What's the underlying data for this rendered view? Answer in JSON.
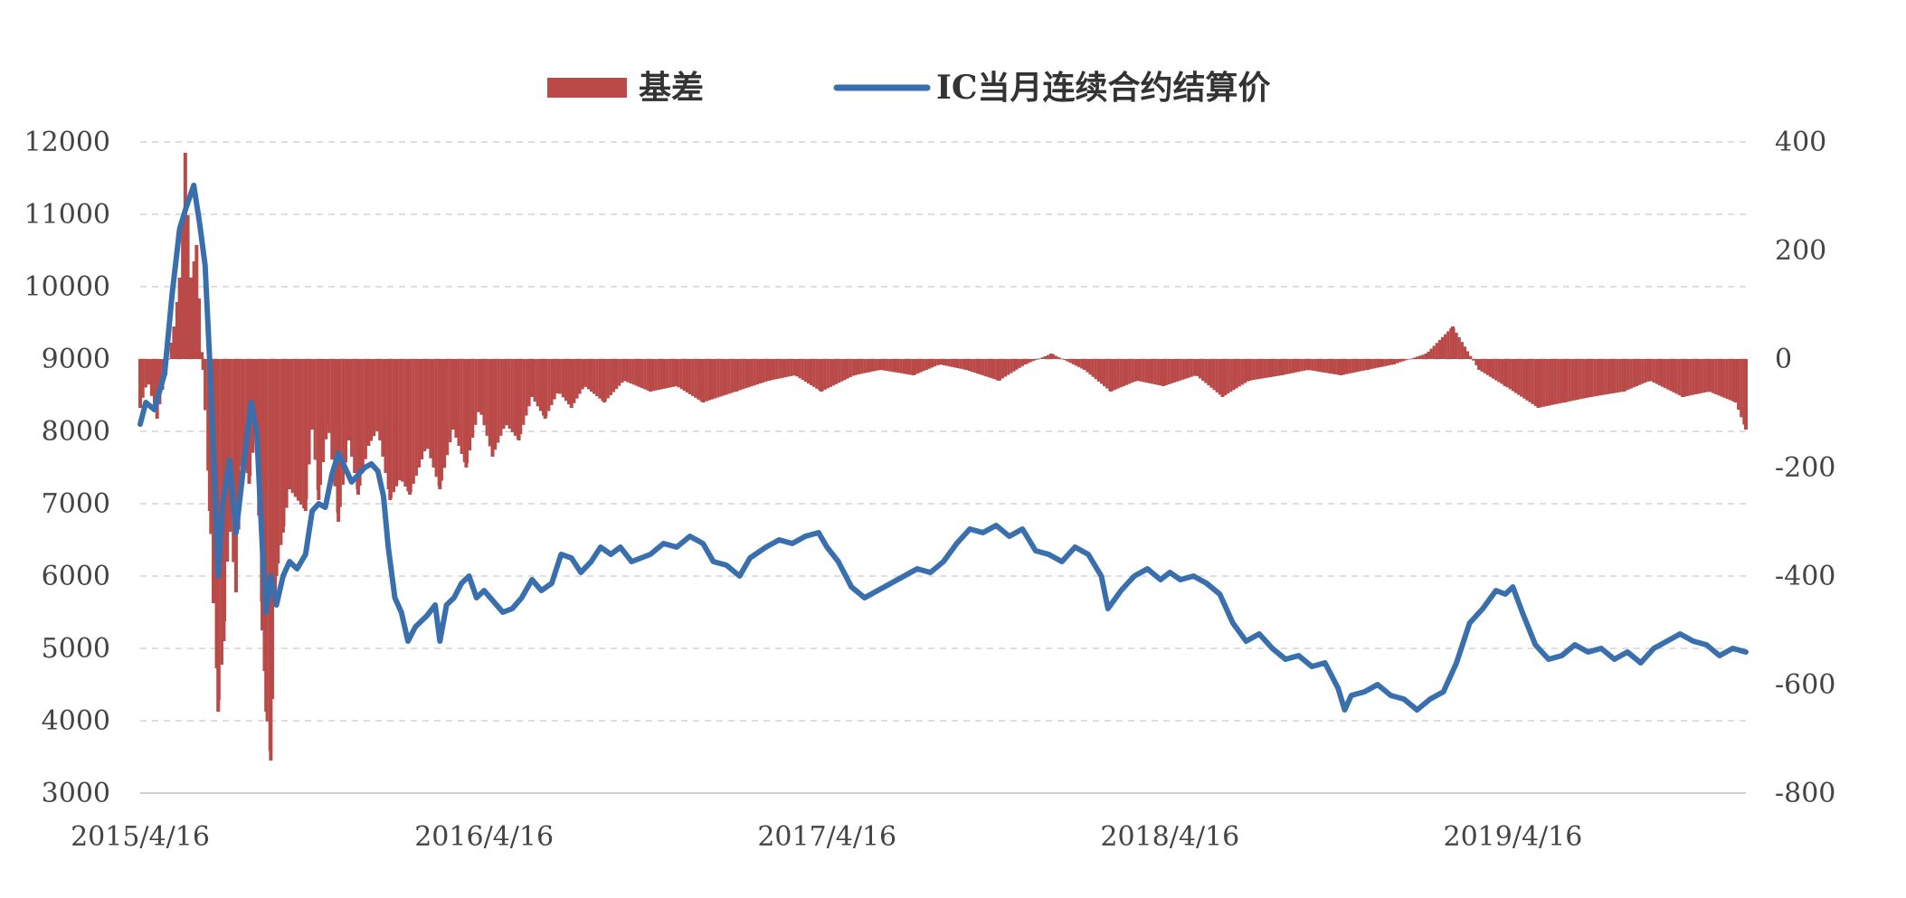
{
  "chart_data": {
    "type": "bar+line",
    "title": "",
    "legend": {
      "placement": "top-center",
      "items": [
        {
          "label": "基差",
          "kind": "area-bars",
          "color": "#b94a48"
        },
        {
          "label": "IC当月连续合约结算价",
          "kind": "line",
          "color": "#3a6fae"
        }
      ]
    },
    "x_axis": {
      "type": "date",
      "range": [
        "2015-04-16",
        "2019-12-20"
      ],
      "tick_labels": [
        "2015/4/16",
        "2016/4/16",
        "2017/4/16",
        "2018/4/16",
        "2019/4/16"
      ],
      "tick_dates": [
        "2015-04-16",
        "2016-04-16",
        "2017-04-16",
        "2018-04-16",
        "2019-04-16"
      ]
    },
    "y_left": {
      "ylim": [
        3000,
        12000
      ],
      "ticks": [
        3000,
        4000,
        5000,
        6000,
        7000,
        8000,
        9000,
        10000,
        11000,
        12000
      ]
    },
    "y_right": {
      "ylim": [
        -800,
        400
      ],
      "ticks": [
        -800,
        -600,
        -400,
        -200,
        0,
        200,
        400
      ]
    },
    "grid": true,
    "series": [
      {
        "name": "IC当月连续合约结算价",
        "axis": "left",
        "color": "#3a6fae",
        "points": [
          [
            "2015-04-16",
            8100
          ],
          [
            "2015-04-22",
            8400
          ],
          [
            "2015-05-01",
            8300
          ],
          [
            "2015-05-12",
            8800
          ],
          [
            "2015-05-20",
            9900
          ],
          [
            "2015-05-28",
            10800
          ],
          [
            "2015-06-04",
            11100
          ],
          [
            "2015-06-12",
            11400
          ],
          [
            "2015-06-18",
            10900
          ],
          [
            "2015-06-24",
            10300
          ],
          [
            "2015-06-30",
            8700
          ],
          [
            "2015-07-03",
            7700
          ],
          [
            "2015-07-08",
            6000
          ],
          [
            "2015-07-13",
            7000
          ],
          [
            "2015-07-20",
            7600
          ],
          [
            "2015-07-27",
            6600
          ],
          [
            "2015-08-03",
            7400
          ],
          [
            "2015-08-12",
            8400
          ],
          [
            "2015-08-18",
            8000
          ],
          [
            "2015-08-24",
            6400
          ],
          [
            "2015-08-28",
            5500
          ],
          [
            "2015-09-02",
            6000
          ],
          [
            "2015-09-08",
            5600
          ],
          [
            "2015-09-15",
            6000
          ],
          [
            "2015-09-22",
            6200
          ],
          [
            "2015-09-30",
            6100
          ],
          [
            "2015-10-09",
            6300
          ],
          [
            "2015-10-16",
            6900
          ],
          [
            "2015-10-23",
            7000
          ],
          [
            "2015-10-30",
            6950
          ],
          [
            "2015-11-06",
            7400
          ],
          [
            "2015-11-13",
            7700
          ],
          [
            "2015-11-20",
            7500
          ],
          [
            "2015-11-27",
            7300
          ],
          [
            "2015-12-04",
            7400
          ],
          [
            "2015-12-11",
            7500
          ],
          [
            "2015-12-18",
            7550
          ],
          [
            "2015-12-25",
            7450
          ],
          [
            "2015-12-31",
            7100
          ],
          [
            "2016-01-05",
            6400
          ],
          [
            "2016-01-12",
            5700
          ],
          [
            "2016-01-19",
            5500
          ],
          [
            "2016-01-26",
            5100
          ],
          [
            "2016-02-03",
            5300
          ],
          [
            "2016-02-15",
            5450
          ],
          [
            "2016-02-24",
            5600
          ],
          [
            "2016-02-29",
            5100
          ],
          [
            "2016-03-07",
            5600
          ],
          [
            "2016-03-15",
            5700
          ],
          [
            "2016-03-23",
            5900
          ],
          [
            "2016-03-31",
            6000
          ],
          [
            "2016-04-08",
            5700
          ],
          [
            "2016-04-16",
            5800
          ],
          [
            "2016-04-26",
            5650
          ],
          [
            "2016-05-06",
            5500
          ],
          [
            "2016-05-16",
            5550
          ],
          [
            "2016-05-26",
            5700
          ],
          [
            "2016-06-06",
            5950
          ],
          [
            "2016-06-16",
            5800
          ],
          [
            "2016-06-27",
            5900
          ],
          [
            "2016-07-07",
            6300
          ],
          [
            "2016-07-18",
            6250
          ],
          [
            "2016-07-28",
            6050
          ],
          [
            "2016-08-08",
            6200
          ],
          [
            "2016-08-18",
            6400
          ],
          [
            "2016-08-29",
            6300
          ],
          [
            "2016-09-08",
            6400
          ],
          [
            "2016-09-20",
            6200
          ],
          [
            "2016-10-10",
            6300
          ],
          [
            "2016-10-24",
            6450
          ],
          [
            "2016-11-07",
            6400
          ],
          [
            "2016-11-21",
            6550
          ],
          [
            "2016-12-05",
            6450
          ],
          [
            "2016-12-16",
            6200
          ],
          [
            "2016-12-30",
            6150
          ],
          [
            "2017-01-13",
            6000
          ],
          [
            "2017-01-24",
            6250
          ],
          [
            "2017-02-10",
            6400
          ],
          [
            "2017-02-24",
            6500
          ],
          [
            "2017-03-10",
            6450
          ],
          [
            "2017-03-24",
            6550
          ],
          [
            "2017-04-07",
            6600
          ],
          [
            "2017-04-16",
            6400
          ],
          [
            "2017-04-28",
            6200
          ],
          [
            "2017-05-12",
            5850
          ],
          [
            "2017-05-26",
            5700
          ],
          [
            "2017-06-09",
            5800
          ],
          [
            "2017-06-23",
            5900
          ],
          [
            "2017-07-07",
            6000
          ],
          [
            "2017-07-21",
            6100
          ],
          [
            "2017-08-04",
            6050
          ],
          [
            "2017-08-18",
            6200
          ],
          [
            "2017-09-01",
            6450
          ],
          [
            "2017-09-15",
            6650
          ],
          [
            "2017-09-29",
            6600
          ],
          [
            "2017-10-13",
            6700
          ],
          [
            "2017-10-27",
            6550
          ],
          [
            "2017-11-10",
            6650
          ],
          [
            "2017-11-24",
            6350
          ],
          [
            "2017-12-08",
            6300
          ],
          [
            "2017-12-22",
            6200
          ],
          [
            "2018-01-05",
            6400
          ],
          [
            "2018-01-19",
            6300
          ],
          [
            "2018-02-02",
            6000
          ],
          [
            "2018-02-09",
            5550
          ],
          [
            "2018-02-23",
            5800
          ],
          [
            "2018-03-09",
            6000
          ],
          [
            "2018-03-23",
            6100
          ],
          [
            "2018-04-06",
            5950
          ],
          [
            "2018-04-16",
            6050
          ],
          [
            "2018-04-27",
            5950
          ],
          [
            "2018-05-11",
            6000
          ],
          [
            "2018-05-25",
            5900
          ],
          [
            "2018-06-08",
            5750
          ],
          [
            "2018-06-22",
            5350
          ],
          [
            "2018-07-06",
            5100
          ],
          [
            "2018-07-20",
            5200
          ],
          [
            "2018-08-03",
            5000
          ],
          [
            "2018-08-17",
            4850
          ],
          [
            "2018-08-31",
            4900
          ],
          [
            "2018-09-14",
            4750
          ],
          [
            "2018-09-28",
            4800
          ],
          [
            "2018-10-12",
            4450
          ],
          [
            "2018-10-19",
            4150
          ],
          [
            "2018-10-26",
            4350
          ],
          [
            "2018-11-09",
            4400
          ],
          [
            "2018-11-23",
            4500
          ],
          [
            "2018-12-07",
            4350
          ],
          [
            "2018-12-21",
            4300
          ],
          [
            "2019-01-04",
            4150
          ],
          [
            "2019-01-18",
            4300
          ],
          [
            "2019-02-01",
            4400
          ],
          [
            "2019-02-15",
            4800
          ],
          [
            "2019-03-01",
            5350
          ],
          [
            "2019-03-15",
            5550
          ],
          [
            "2019-03-29",
            5800
          ],
          [
            "2019-04-08",
            5750
          ],
          [
            "2019-04-16",
            5850
          ],
          [
            "2019-04-26",
            5500
          ],
          [
            "2019-05-10",
            5050
          ],
          [
            "2019-05-24",
            4850
          ],
          [
            "2019-06-07",
            4900
          ],
          [
            "2019-06-21",
            5050
          ],
          [
            "2019-07-05",
            4950
          ],
          [
            "2019-07-19",
            5000
          ],
          [
            "2019-08-02",
            4850
          ],
          [
            "2019-08-16",
            4950
          ],
          [
            "2019-08-30",
            4800
          ],
          [
            "2019-09-13",
            5000
          ],
          [
            "2019-09-27",
            5100
          ],
          [
            "2019-10-11",
            5200
          ],
          [
            "2019-10-25",
            5100
          ],
          [
            "2019-11-08",
            5050
          ],
          [
            "2019-11-22",
            4900
          ],
          [
            "2019-12-06",
            5000
          ],
          [
            "2019-12-20",
            4950
          ]
        ]
      }
    ],
    "bar_series": {
      "name": "基差",
      "axis": "right",
      "color": "#b94a48",
      "points": [
        [
          "2015-04-16",
          -90
        ],
        [
          "2015-04-24",
          -40
        ],
        [
          "2015-05-04",
          -110
        ],
        [
          "2015-05-13",
          -30
        ],
        [
          "2015-05-22",
          60
        ],
        [
          "2015-05-28",
          150
        ],
        [
          "2015-06-03",
          380
        ],
        [
          "2015-06-09",
          150
        ],
        [
          "2015-06-15",
          210
        ],
        [
          "2015-06-22",
          -20
        ],
        [
          "2015-06-29",
          -280
        ],
        [
          "2015-07-03",
          -450
        ],
        [
          "2015-07-08",
          -650
        ],
        [
          "2015-07-14",
          -520
        ],
        [
          "2015-07-20",
          -300
        ],
        [
          "2015-07-27",
          -430
        ],
        [
          "2015-08-03",
          -160
        ],
        [
          "2015-08-10",
          -230
        ],
        [
          "2015-08-17",
          -130
        ],
        [
          "2015-08-24",
          -500
        ],
        [
          "2015-08-28",
          -650
        ],
        [
          "2015-09-02",
          -740
        ],
        [
          "2015-09-08",
          -400
        ],
        [
          "2015-09-15",
          -320
        ],
        [
          "2015-09-22",
          -240
        ],
        [
          "2015-10-09",
          -280
        ],
        [
          "2015-10-16",
          -130
        ],
        [
          "2015-10-23",
          -260
        ],
        [
          "2015-11-02",
          -120
        ],
        [
          "2015-11-13",
          -300
        ],
        [
          "2015-11-24",
          -150
        ],
        [
          "2015-12-04",
          -250
        ],
        [
          "2015-12-15",
          -160
        ],
        [
          "2015-12-25",
          -130
        ],
        [
          "2016-01-07",
          -260
        ],
        [
          "2016-01-18",
          -220
        ],
        [
          "2016-01-28",
          -250
        ],
        [
          "2016-02-15",
          -160
        ],
        [
          "2016-02-29",
          -240
        ],
        [
          "2016-03-14",
          -130
        ],
        [
          "2016-03-28",
          -200
        ],
        [
          "2016-04-11",
          -90
        ],
        [
          "2016-04-25",
          -180
        ],
        [
          "2016-05-09",
          -120
        ],
        [
          "2016-05-23",
          -150
        ],
        [
          "2016-06-06",
          -70
        ],
        [
          "2016-06-20",
          -110
        ],
        [
          "2016-07-04",
          -60
        ],
        [
          "2016-07-18",
          -90
        ],
        [
          "2016-08-01",
          -50
        ],
        [
          "2016-08-22",
          -80
        ],
        [
          "2016-09-12",
          -40
        ],
        [
          "2016-10-10",
          -60
        ],
        [
          "2016-11-07",
          -50
        ],
        [
          "2016-12-05",
          -80
        ],
        [
          "2017-01-09",
          -60
        ],
        [
          "2017-02-13",
          -40
        ],
        [
          "2017-03-13",
          -30
        ],
        [
          "2017-04-10",
          -60
        ],
        [
          "2017-05-15",
          -30
        ],
        [
          "2017-06-12",
          -20
        ],
        [
          "2017-07-17",
          -30
        ],
        [
          "2017-08-14",
          -10
        ],
        [
          "2017-09-11",
          -20
        ],
        [
          "2017-10-16",
          -40
        ],
        [
          "2017-11-13",
          -10
        ],
        [
          "2017-12-11",
          10
        ],
        [
          "2018-01-15",
          -20
        ],
        [
          "2018-02-12",
          -60
        ],
        [
          "2018-03-12",
          -40
        ],
        [
          "2018-04-09",
          -50
        ],
        [
          "2018-05-14",
          -30
        ],
        [
          "2018-06-11",
          -70
        ],
        [
          "2018-07-09",
          -40
        ],
        [
          "2018-08-13",
          -30
        ],
        [
          "2018-09-10",
          -20
        ],
        [
          "2018-10-15",
          -30
        ],
        [
          "2018-11-12",
          -20
        ],
        [
          "2018-12-10",
          -10
        ],
        [
          "2019-01-14",
          10
        ],
        [
          "2019-02-11",
          60
        ],
        [
          "2019-03-11",
          -20
        ],
        [
          "2019-04-08",
          -50
        ],
        [
          "2019-05-13",
          -90
        ],
        [
          "2019-06-10",
          -80
        ],
        [
          "2019-07-08",
          -70
        ],
        [
          "2019-08-12",
          -60
        ],
        [
          "2019-09-09",
          -40
        ],
        [
          "2019-10-14",
          -70
        ],
        [
          "2019-11-11",
          -60
        ],
        [
          "2019-12-09",
          -80
        ],
        [
          "2019-12-20",
          -130
        ]
      ]
    }
  }
}
